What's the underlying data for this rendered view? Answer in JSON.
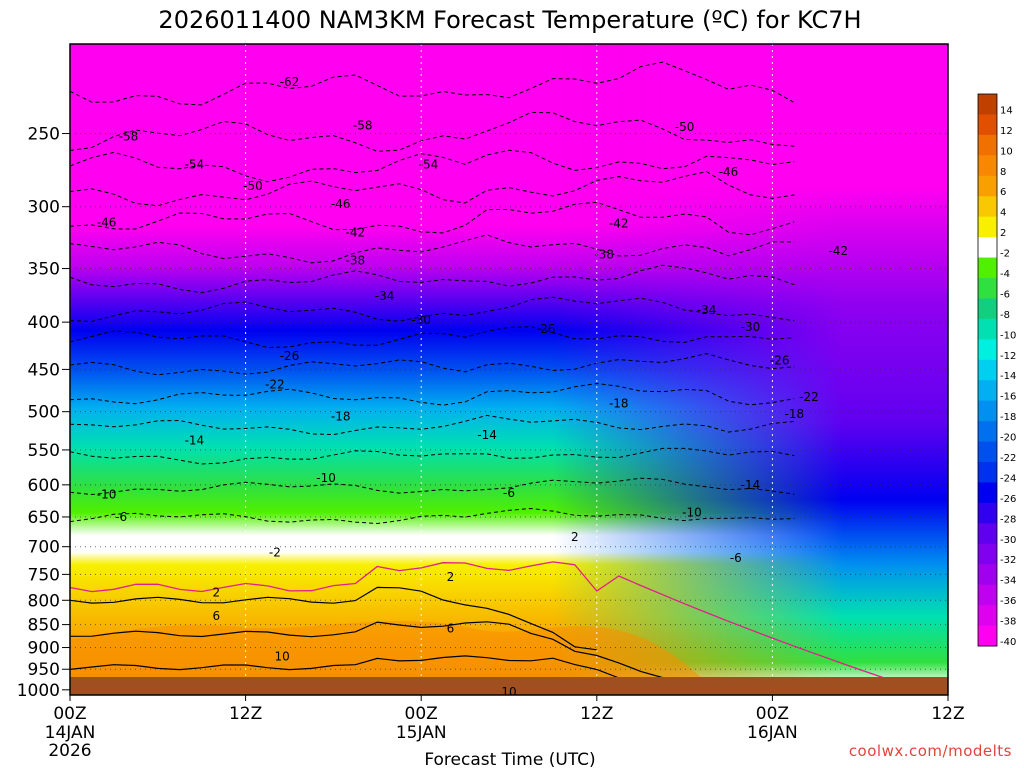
{
  "chart_data": {
    "type": "heatmap",
    "title": "2026011400 NAM3KM Forecast Temperature (ºC) for KC7H",
    "xlabel": "Forecast Time (UTC)",
    "credit": "coolwx.com/modelts",
    "x_ticks": [
      {
        "label": "00Z",
        "sub1": "14JAN",
        "sub2": "2026",
        "hour": 0
      },
      {
        "label": "12Z",
        "sub1": "",
        "sub2": "",
        "hour": 12
      },
      {
        "label": "00Z",
        "sub1": "15JAN",
        "sub2": "",
        "hour": 24
      },
      {
        "label": "12Z",
        "sub1": "",
        "sub2": "",
        "hour": 36
      },
      {
        "label": "00Z",
        "sub1": "16JAN",
        "sub2": "",
        "hour": 48
      },
      {
        "label": "12Z",
        "sub1": "",
        "sub2": "",
        "hour": 60
      }
    ],
    "xlim": [
      0,
      60
    ],
    "y_ticks": [
      250,
      300,
      350,
      400,
      450,
      500,
      550,
      600,
      650,
      700,
      750,
      800,
      850,
      900,
      950,
      1000
    ],
    "ylim": [
      1013,
      200
    ],
    "y_scale": "log-pressure",
    "grid": true,
    "colorbar": {
      "labels": [
        "14",
        "12",
        "10",
        "8",
        "6",
        "4",
        "2",
        "-2",
        "-4",
        "-6",
        "-8",
        "-10",
        "-12",
        "-14",
        "-16",
        "-18",
        "-20",
        "-22",
        "-24",
        "-26",
        "-28",
        "-30",
        "-32",
        "-34",
        "-36",
        "-38",
        "-40"
      ],
      "colors": [
        "#c04000",
        "#e05000",
        "#f07000",
        "#f88800",
        "#f8a000",
        "#f8c800",
        "#f8f000",
        "#ffffff",
        "#50f000",
        "#30e040",
        "#10d080",
        "#00e0b0",
        "#00f0e0",
        "#00d0f0",
        "#00b0f0",
        "#0090f0",
        "#0070f0",
        "#0050f0",
        "#0030f0",
        "#0000f0",
        "#3000f0",
        "#6000f0",
        "#8000f0",
        "#a000f0",
        "#c000f0",
        "#e000f0",
        "#ff00f0"
      ]
    },
    "contour_labels": [
      {
        "text": "-62",
        "hour": 15,
        "p": 220
      },
      {
        "text": "-58",
        "hour": 4,
        "p": 252
      },
      {
        "text": "-58",
        "hour": 20,
        "p": 245
      },
      {
        "text": "-50",
        "hour": 42,
        "p": 246
      },
      {
        "text": "-54",
        "hour": 8.5,
        "p": 270
      },
      {
        "text": "-54",
        "hour": 24.5,
        "p": 270
      },
      {
        "text": "-46",
        "hour": 45,
        "p": 275
      },
      {
        "text": "-50",
        "hour": 12.5,
        "p": 285
      },
      {
        "text": "-46",
        "hour": 18.5,
        "p": 298
      },
      {
        "text": "-46",
        "hour": 2.5,
        "p": 312
      },
      {
        "text": "-42",
        "hour": 19.5,
        "p": 320
      },
      {
        "text": "-42",
        "hour": 37.5,
        "p": 313
      },
      {
        "text": "-42",
        "hour": 52.5,
        "p": 335
      },
      {
        "text": "-38",
        "hour": 19.5,
        "p": 343
      },
      {
        "text": "-38",
        "hour": 36.5,
        "p": 338
      },
      {
        "text": "-34",
        "hour": 21.5,
        "p": 375
      },
      {
        "text": "-34",
        "hour": 43.5,
        "p": 388
      },
      {
        "text": "-30",
        "hour": 24,
        "p": 398
      },
      {
        "text": "-26",
        "hour": 32.5,
        "p": 407
      },
      {
        "text": "-30",
        "hour": 46.5,
        "p": 405
      },
      {
        "text": "-26",
        "hour": 15,
        "p": 435
      },
      {
        "text": "-26",
        "hour": 48.5,
        "p": 440
      },
      {
        "text": "-22",
        "hour": 14,
        "p": 467
      },
      {
        "text": "-22",
        "hour": 50.5,
        "p": 482
      },
      {
        "text": "-18",
        "hour": 37.5,
        "p": 490
      },
      {
        "text": "-18",
        "hour": 18.5,
        "p": 506
      },
      {
        "text": "-18",
        "hour": 49.5,
        "p": 503
      },
      {
        "text": "-14",
        "hour": 8.5,
        "p": 537
      },
      {
        "text": "-14",
        "hour": 28.5,
        "p": 530
      },
      {
        "text": "-10",
        "hour": 17.5,
        "p": 590
      },
      {
        "text": "-14",
        "hour": 46.5,
        "p": 600
      },
      {
        "text": "-6",
        "hour": 30,
        "p": 612
      },
      {
        "text": "-10",
        "hour": 2.5,
        "p": 615
      },
      {
        "text": "-10",
        "hour": 42.5,
        "p": 643
      },
      {
        "text": "-6",
        "hour": 3.5,
        "p": 650
      },
      {
        "text": "2",
        "hour": 34.5,
        "p": 683
      },
      {
        "text": "-2",
        "hour": 14,
        "p": 710
      },
      {
        "text": "-6",
        "hour": 45.5,
        "p": 720
      },
      {
        "text": "2",
        "hour": 26,
        "p": 755
      },
      {
        "text": "2",
        "hour": 10,
        "p": 785
      },
      {
        "text": "6",
        "hour": 10,
        "p": 832
      },
      {
        "text": "6",
        "hour": 26,
        "p": 858
      },
      {
        "text": "10",
        "hour": 14.5,
        "p": 920
      },
      {
        "text": "10",
        "hour": 30,
        "p": 1005
      }
    ]
  }
}
